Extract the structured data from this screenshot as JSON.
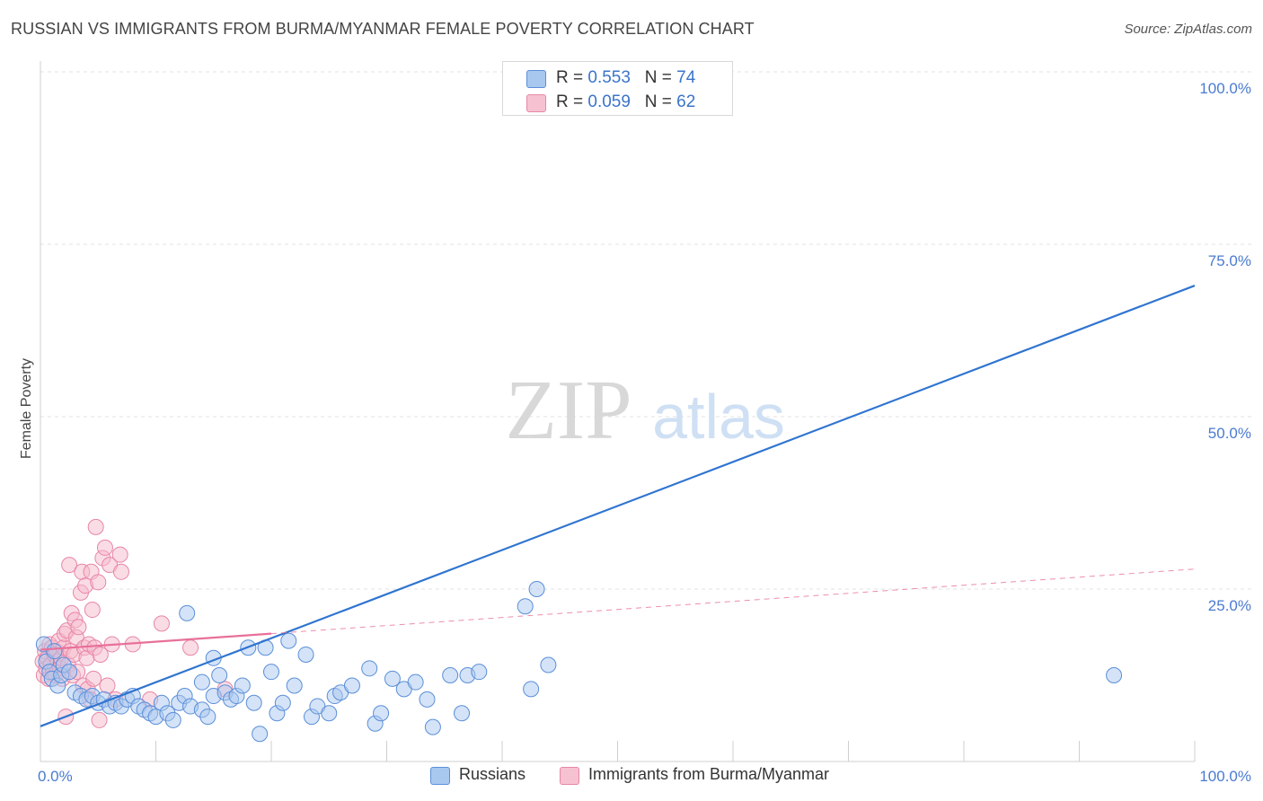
{
  "title": "RUSSIAN VS IMMIGRANTS FROM BURMA/MYANMAR FEMALE POVERTY CORRELATION CHART",
  "source": "Source: ZipAtlas.com",
  "watermark": {
    "zip": "ZIP",
    "atlas": "atlas"
  },
  "legend": {
    "r_label": "R = ",
    "n_label": "N = ",
    "russians": {
      "r": "0.553",
      "n": "74"
    },
    "burma": {
      "r": "0.059",
      "n": "62"
    }
  },
  "colors": {
    "russians_fill": "#a9c8ef",
    "russians_stroke": "#5b8fd9",
    "russians_line": "#2f74d0",
    "burma_fill": "#f6b9cc",
    "burma_stroke": "#e786a6",
    "burma_line": "#e8709a",
    "tick_text": "#4a7bd0"
  },
  "chart_data": {
    "type": "scatter",
    "title": "RUSSIAN VS IMMIGRANTS FROM BURMA/MYANMAR FEMALE POVERTY CORRELATION CHART",
    "xlabel": "",
    "ylabel": "Female Poverty",
    "xlim": [
      0,
      100
    ],
    "ylim": [
      0,
      100
    ],
    "x_tick_labels": [
      "0.0%",
      "100.0%"
    ],
    "y_tick_values": [
      25,
      50,
      75,
      100
    ],
    "y_tick_labels": [
      "25.0%",
      "50.0%",
      "75.0%",
      "100.0%"
    ],
    "legend_position": "top-center",
    "series": [
      {
        "name": "Russians",
        "r": 0.553,
        "n": 74,
        "trend": {
          "x": [
            0,
            100
          ],
          "y": [
            5.1,
            69.0
          ],
          "style": "solid"
        },
        "points": [
          {
            "x": 0.3,
            "y": 17.0
          },
          {
            "x": 0.5,
            "y": 14.5
          },
          {
            "x": 0.8,
            "y": 13.0
          },
          {
            "x": 1.0,
            "y": 12.0
          },
          {
            "x": 1.2,
            "y": 16.0
          },
          {
            "x": 1.5,
            "y": 11.0
          },
          {
            "x": 1.8,
            "y": 12.5
          },
          {
            "x": 2.0,
            "y": 14.0
          },
          {
            "x": 2.5,
            "y": 13.0
          },
          {
            "x": 3.0,
            "y": 10.0
          },
          {
            "x": 3.5,
            "y": 9.5
          },
          {
            "x": 4.0,
            "y": 9.0
          },
          {
            "x": 4.5,
            "y": 9.5
          },
          {
            "x": 5.0,
            "y": 8.5
          },
          {
            "x": 5.5,
            "y": 9.0
          },
          {
            "x": 6.0,
            "y": 8.0
          },
          {
            "x": 6.5,
            "y": 8.5
          },
          {
            "x": 7.0,
            "y": 8.0
          },
          {
            "x": 7.5,
            "y": 9.0
          },
          {
            "x": 8.0,
            "y": 9.5
          },
          {
            "x": 8.5,
            "y": 8.0
          },
          {
            "x": 9.0,
            "y": 7.5
          },
          {
            "x": 9.5,
            "y": 7.0
          },
          {
            "x": 10.0,
            "y": 6.5
          },
          {
            "x": 10.5,
            "y": 8.5
          },
          {
            "x": 11.0,
            "y": 7.0
          },
          {
            "x": 11.5,
            "y": 6.0
          },
          {
            "x": 12.0,
            "y": 8.5
          },
          {
            "x": 12.5,
            "y": 9.5
          },
          {
            "x": 13.0,
            "y": 8.0
          },
          {
            "x": 14.0,
            "y": 7.5
          },
          {
            "x": 15.0,
            "y": 9.5
          },
          {
            "x": 16.0,
            "y": 10.0
          },
          {
            "x": 16.5,
            "y": 9.0
          },
          {
            "x": 17.0,
            "y": 9.5
          },
          {
            "x": 12.7,
            "y": 21.5
          },
          {
            "x": 14.0,
            "y": 11.5
          },
          {
            "x": 14.5,
            "y": 6.5
          },
          {
            "x": 15.0,
            "y": 15.0
          },
          {
            "x": 15.5,
            "y": 12.5
          },
          {
            "x": 17.5,
            "y": 11.0
          },
          {
            "x": 18.0,
            "y": 16.5
          },
          {
            "x": 18.5,
            "y": 8.5
          },
          {
            "x": 19.0,
            "y": 4.0
          },
          {
            "x": 19.5,
            "y": 16.5
          },
          {
            "x": 20.0,
            "y": 13.0
          },
          {
            "x": 20.5,
            "y": 7.0
          },
          {
            "x": 21.0,
            "y": 8.5
          },
          {
            "x": 21.5,
            "y": 17.5
          },
          {
            "x": 22.0,
            "y": 11.0
          },
          {
            "x": 23.0,
            "y": 15.5
          },
          {
            "x": 23.5,
            "y": 6.5
          },
          {
            "x": 24.0,
            "y": 8.0
          },
          {
            "x": 25.0,
            "y": 7.0
          },
          {
            "x": 25.5,
            "y": 9.5
          },
          {
            "x": 26.0,
            "y": 10.0
          },
          {
            "x": 27.0,
            "y": 11.0
          },
          {
            "x": 28.5,
            "y": 13.5
          },
          {
            "x": 29.0,
            "y": 5.5
          },
          {
            "x": 29.5,
            "y": 7.0
          },
          {
            "x": 30.5,
            "y": 12.0
          },
          {
            "x": 31.5,
            "y": 10.5
          },
          {
            "x": 32.5,
            "y": 11.5
          },
          {
            "x": 33.5,
            "y": 9.0
          },
          {
            "x": 34.0,
            "y": 5.0
          },
          {
            "x": 35.5,
            "y": 12.5
          },
          {
            "x": 36.5,
            "y": 7.0
          },
          {
            "x": 37.0,
            "y": 12.5
          },
          {
            "x": 38.0,
            "y": 13.0
          },
          {
            "x": 42.0,
            "y": 22.5
          },
          {
            "x": 42.5,
            "y": 10.5
          },
          {
            "x": 43.0,
            "y": 25.0
          },
          {
            "x": 44.0,
            "y": 14.0
          },
          {
            "x": 93.0,
            "y": 12.5
          }
        ]
      },
      {
        "name": "Immigrants from Burma/Myanmar",
        "r": 0.059,
        "n": 62,
        "trend": {
          "x": [
            0,
            100
          ],
          "y": [
            16.2,
            27.9
          ],
          "solid_until": 20,
          "style": "solid-then-dashed"
        },
        "points": [
          {
            "x": 0.2,
            "y": 14.5
          },
          {
            "x": 0.3,
            "y": 12.5
          },
          {
            "x": 0.4,
            "y": 16.0
          },
          {
            "x": 0.5,
            "y": 13.5
          },
          {
            "x": 0.6,
            "y": 15.0
          },
          {
            "x": 0.7,
            "y": 12.0
          },
          {
            "x": 0.8,
            "y": 17.0
          },
          {
            "x": 0.9,
            "y": 14.0
          },
          {
            "x": 1.0,
            "y": 16.5
          },
          {
            "x": 1.1,
            "y": 13.0
          },
          {
            "x": 1.2,
            "y": 15.5
          },
          {
            "x": 1.3,
            "y": 12.5
          },
          {
            "x": 1.4,
            "y": 16.0
          },
          {
            "x": 1.5,
            "y": 14.5
          },
          {
            "x": 1.6,
            "y": 17.5
          },
          {
            "x": 1.7,
            "y": 13.5
          },
          {
            "x": 1.8,
            "y": 15.0
          },
          {
            "x": 1.9,
            "y": 12.0
          },
          {
            "x": 2.0,
            "y": 16.5
          },
          {
            "x": 2.1,
            "y": 18.5
          },
          {
            "x": 2.2,
            "y": 6.5
          },
          {
            "x": 2.3,
            "y": 19.0
          },
          {
            "x": 2.4,
            "y": 14.0
          },
          {
            "x": 2.5,
            "y": 28.5
          },
          {
            "x": 2.6,
            "y": 16.0
          },
          {
            "x": 2.7,
            "y": 21.5
          },
          {
            "x": 2.8,
            "y": 12.5
          },
          {
            "x": 2.9,
            "y": 15.5
          },
          {
            "x": 3.0,
            "y": 20.5
          },
          {
            "x": 3.1,
            "y": 18.0
          },
          {
            "x": 3.2,
            "y": 13.0
          },
          {
            "x": 3.3,
            "y": 19.5
          },
          {
            "x": 3.5,
            "y": 24.5
          },
          {
            "x": 3.6,
            "y": 27.5
          },
          {
            "x": 3.7,
            "y": 11.0
          },
          {
            "x": 3.8,
            "y": 16.5
          },
          {
            "x": 3.9,
            "y": 25.5
          },
          {
            "x": 4.0,
            "y": 15.0
          },
          {
            "x": 4.1,
            "y": 10.5
          },
          {
            "x": 4.2,
            "y": 17.0
          },
          {
            "x": 4.3,
            "y": 9.0
          },
          {
            "x": 4.4,
            "y": 27.5
          },
          {
            "x": 4.5,
            "y": 22.0
          },
          {
            "x": 4.6,
            "y": 12.0
          },
          {
            "x": 4.7,
            "y": 16.5
          },
          {
            "x": 4.8,
            "y": 34.0
          },
          {
            "x": 5.0,
            "y": 26.0
          },
          {
            "x": 5.1,
            "y": 6.0
          },
          {
            "x": 5.2,
            "y": 15.5
          },
          {
            "x": 5.4,
            "y": 29.5
          },
          {
            "x": 5.6,
            "y": 31.0
          },
          {
            "x": 5.8,
            "y": 11.0
          },
          {
            "x": 6.0,
            "y": 28.5
          },
          {
            "x": 6.2,
            "y": 17.0
          },
          {
            "x": 6.5,
            "y": 9.0
          },
          {
            "x": 6.9,
            "y": 30.0
          },
          {
            "x": 7.0,
            "y": 27.5
          },
          {
            "x": 8.0,
            "y": 17.0
          },
          {
            "x": 9.5,
            "y": 9.0
          },
          {
            "x": 10.5,
            "y": 20.0
          },
          {
            "x": 13.0,
            "y": 16.5
          },
          {
            "x": 16.0,
            "y": 10.5
          }
        ]
      }
    ]
  }
}
